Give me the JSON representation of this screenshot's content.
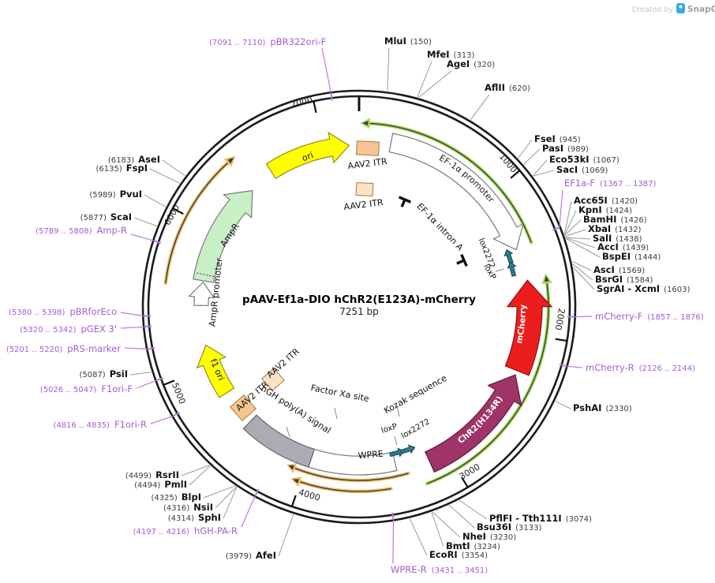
{
  "watermark": {
    "created_by": "Created by",
    "brand": "SnapGene"
  },
  "center": {
    "title": "pAAV-Ef1a-DIO hChR2(E123A)-mCherry",
    "subtitle": "7251 bp"
  },
  "ticks": [
    "1000",
    "2000",
    "3000",
    "4000",
    "5000",
    "6000",
    "7000"
  ],
  "palette": {
    "backbone": "#1c1c1c",
    "enzyme_leader": "#9a9a9a",
    "primer_purple": "#A55BD6",
    "primer_leader": "#B77CE0",
    "orf_green": "#A9DD5E",
    "orf_orange": "#EFC06A",
    "lox_teal": "#2E7A8C"
  },
  "features": {
    "ori": {
      "label": "ori",
      "color": "#FFFF00"
    },
    "itr1": {
      "label": "AAV2 ITR",
      "color": "#F6C690"
    },
    "itr2": {
      "label": "AAV2 ITR",
      "color": "#FAE3C4"
    },
    "ef1a": {
      "label": "EF-1α promoter",
      "color": "#FFFFFF"
    },
    "intron": {
      "label": "EF-1α intron A"
    },
    "lox2272a": {
      "label": "lox2272",
      "color": "#2E7A8C"
    },
    "loxpa": {
      "label": "loxP",
      "color": "#2E7A8C"
    },
    "mcherry": {
      "label": "mCherry",
      "color": "#EC1D1D"
    },
    "chr2": {
      "label": "ChR2(H134R)",
      "color": "#A03468"
    },
    "kozak": {
      "label": "Kozak sequence"
    },
    "lox2272b": {
      "label": "lox2272",
      "color": "#2E7A8C"
    },
    "loxpb": {
      "label": "loxP",
      "color": "#2E7A8C"
    },
    "wpre": {
      "label": "WPRE",
      "color": "#FFFFFF"
    },
    "hgh": {
      "label": "hGH poly(A) signal",
      "color": "#ABABB3"
    },
    "factorxa": {
      "label": "Factor Xa site"
    },
    "itr3": {
      "label": "AAV2 ITR",
      "color": "#FAE3C4"
    },
    "itr4": {
      "label": "AAV2 ITR",
      "color": "#F6C690"
    },
    "f1ori": {
      "label": "f1 ori",
      "color": "#FFFF00"
    },
    "amprprom": {
      "label": "AmpR promoter",
      "color": "#FFFFFF"
    },
    "ampr": {
      "label": "AmpR",
      "color": "#C9EFC4"
    }
  },
  "enzymes": [
    {
      "name": "MluI",
      "pos": "(150)"
    },
    {
      "name": "MfeI",
      "pos": "(313)"
    },
    {
      "name": "AgeI",
      "pos": "(320)"
    },
    {
      "name": "AflII",
      "pos": "(620)"
    },
    {
      "name": "FseI",
      "pos": "(945)"
    },
    {
      "name": "PasI",
      "pos": "(989)"
    },
    {
      "name": "Eco53kI",
      "pos": "(1067)"
    },
    {
      "name": "SacI",
      "pos": "(1069)"
    },
    {
      "name": "Acc65I",
      "pos": "(1420)"
    },
    {
      "name": "KpnI",
      "pos": "(1424)"
    },
    {
      "name": "BamHI",
      "pos": "(1426)"
    },
    {
      "name": "XbaI",
      "pos": "(1432)"
    },
    {
      "name": "SalI",
      "pos": "(1438)"
    },
    {
      "name": "AccI",
      "pos": "(1439)"
    },
    {
      "name": "BspEI",
      "pos": "(1444)"
    },
    {
      "name": "AscI",
      "pos": "(1569)"
    },
    {
      "name": "BsrGI",
      "pos": "(1584)"
    },
    {
      "name": "SgrAI - XcmI",
      "pos": "(1603)"
    },
    {
      "name": "PshAI",
      "pos": "(2330)"
    },
    {
      "name": "PflFI - Tth111I",
      "pos": "(3074)"
    },
    {
      "name": "Bsu36I",
      "pos": "(3133)"
    },
    {
      "name": "NheI",
      "pos": "(3230)"
    },
    {
      "name": "BmtI",
      "pos": "(3234)"
    },
    {
      "name": "EcoRI",
      "pos": "(3354)"
    },
    {
      "name": "AfeI",
      "pos": "(3979)"
    },
    {
      "name": "SphI",
      "pos": "(4314)"
    },
    {
      "name": "NsiI",
      "pos": "(4316)"
    },
    {
      "name": "BlpI",
      "pos": "(4325)"
    },
    {
      "name": "PmlI",
      "pos": "(4494)"
    },
    {
      "name": "RsrII",
      "pos": "(4499)"
    },
    {
      "name": "PsiI",
      "pos": "(5087)"
    },
    {
      "name": "ScaI",
      "pos": "(5877)"
    },
    {
      "name": "PvuI",
      "pos": "(5989)"
    },
    {
      "name": "FspI",
      "pos": "(6135)"
    },
    {
      "name": "AseI",
      "pos": "(6183)"
    }
  ],
  "primers": [
    {
      "name": "pBR322ori-F",
      "range": "(7091 .. 7110)"
    },
    {
      "name": "EF1a-F",
      "range": "(1367 .. 1387)"
    },
    {
      "name": "mCherry-F",
      "range": "(1857 .. 1876)"
    },
    {
      "name": "mCherry-R",
      "range": "(2126 .. 2144)"
    },
    {
      "name": "WPRE-R",
      "range": "(3431 .. 3451)"
    },
    {
      "name": "hGH-PA-R",
      "range": "(4197 .. 4216)"
    },
    {
      "name": "F1ori-R",
      "range": "(4816 .. 4835)"
    },
    {
      "name": "F1ori-F",
      "range": "(5026 .. 5047)"
    },
    {
      "name": "pRS-marker",
      "range": "(5201 .. 5220)"
    },
    {
      "name": "pGEX 3'",
      "range": "(5320 .. 5342)"
    },
    {
      "name": "pBRforEco",
      "range": "(5380 .. 5398)"
    },
    {
      "name": "Amp-R",
      "range": "(5789 .. 5808)"
    }
  ]
}
